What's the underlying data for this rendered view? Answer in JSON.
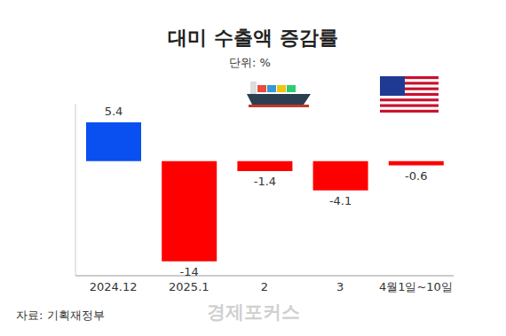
{
  "chart_data": {
    "type": "bar",
    "title": "대미 수출액 증감률",
    "subtitle": "단위: %",
    "categories": [
      "2024.12",
      "2025.1",
      "2",
      "3",
      "4월1일~10일"
    ],
    "values": [
      5.4,
      -14,
      -1.4,
      -4.1,
      -0.6
    ],
    "colors": [
      "#0a4ff0",
      "#ff0000",
      "#ff0000",
      "#ff0000",
      "#ff0000"
    ],
    "ylim": [
      -16,
      8
    ],
    "grid": false,
    "data_labels": true,
    "tick_labels": "x",
    "source": "자료: 기획재정부",
    "watermark": "경제포커스"
  }
}
